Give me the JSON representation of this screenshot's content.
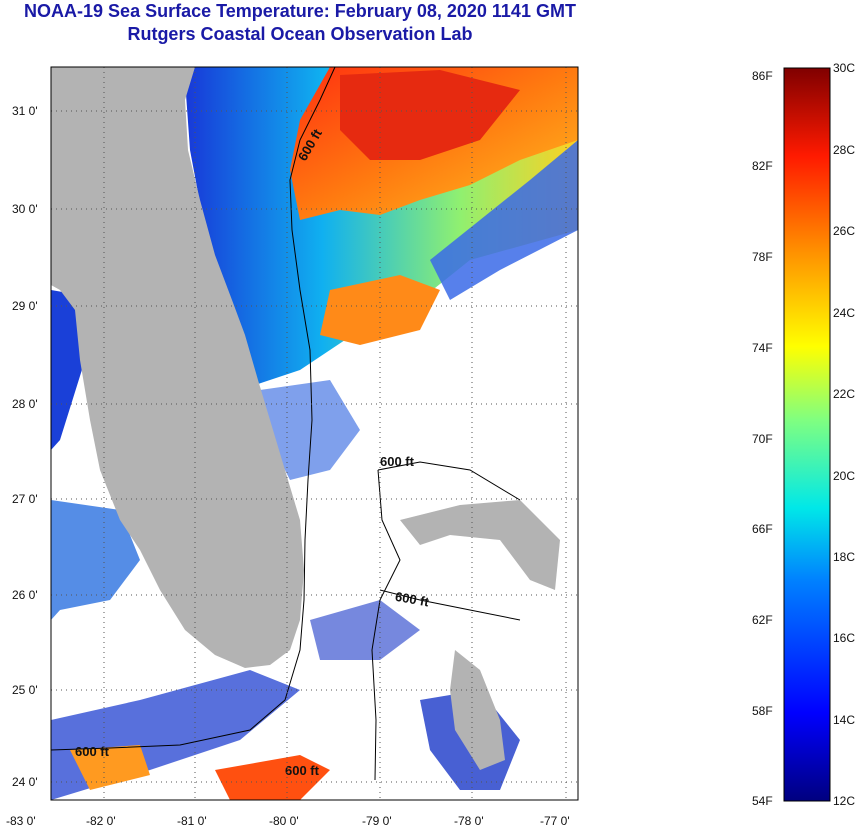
{
  "header": {
    "title": "NOAA-19 Sea Surface Temperature:  February 08, 2020 1141 GMT",
    "subtitle": "Rutgers Coastal Ocean Observation Lab"
  },
  "map": {
    "lat_labels": [
      "31 0'",
      "30 0'",
      "29 0'",
      "28 0'",
      "27 0'",
      "26 0'",
      "25 0'",
      "24 0'"
    ],
    "lon_labels": [
      "-83 0'",
      "-82 0'",
      "-81 0'",
      "-80 0'",
      "-79 0'",
      "-78 0'",
      "-77 0'"
    ],
    "contour_label": "600 ft",
    "colors": {
      "land": "#b3b3b3",
      "no_data": "#ffffff",
      "warm": "#e83010",
      "cool": "#1c3ed8"
    }
  },
  "colorbar": {
    "fahrenheit": [
      "86F",
      "82F",
      "78F",
      "74F",
      "70F",
      "66F",
      "62F",
      "58F",
      "54F"
    ],
    "celsius": [
      "30C",
      "28C",
      "26C",
      "24C",
      "22C",
      "20C",
      "18C",
      "16C",
      "14C",
      "12C"
    ]
  }
}
